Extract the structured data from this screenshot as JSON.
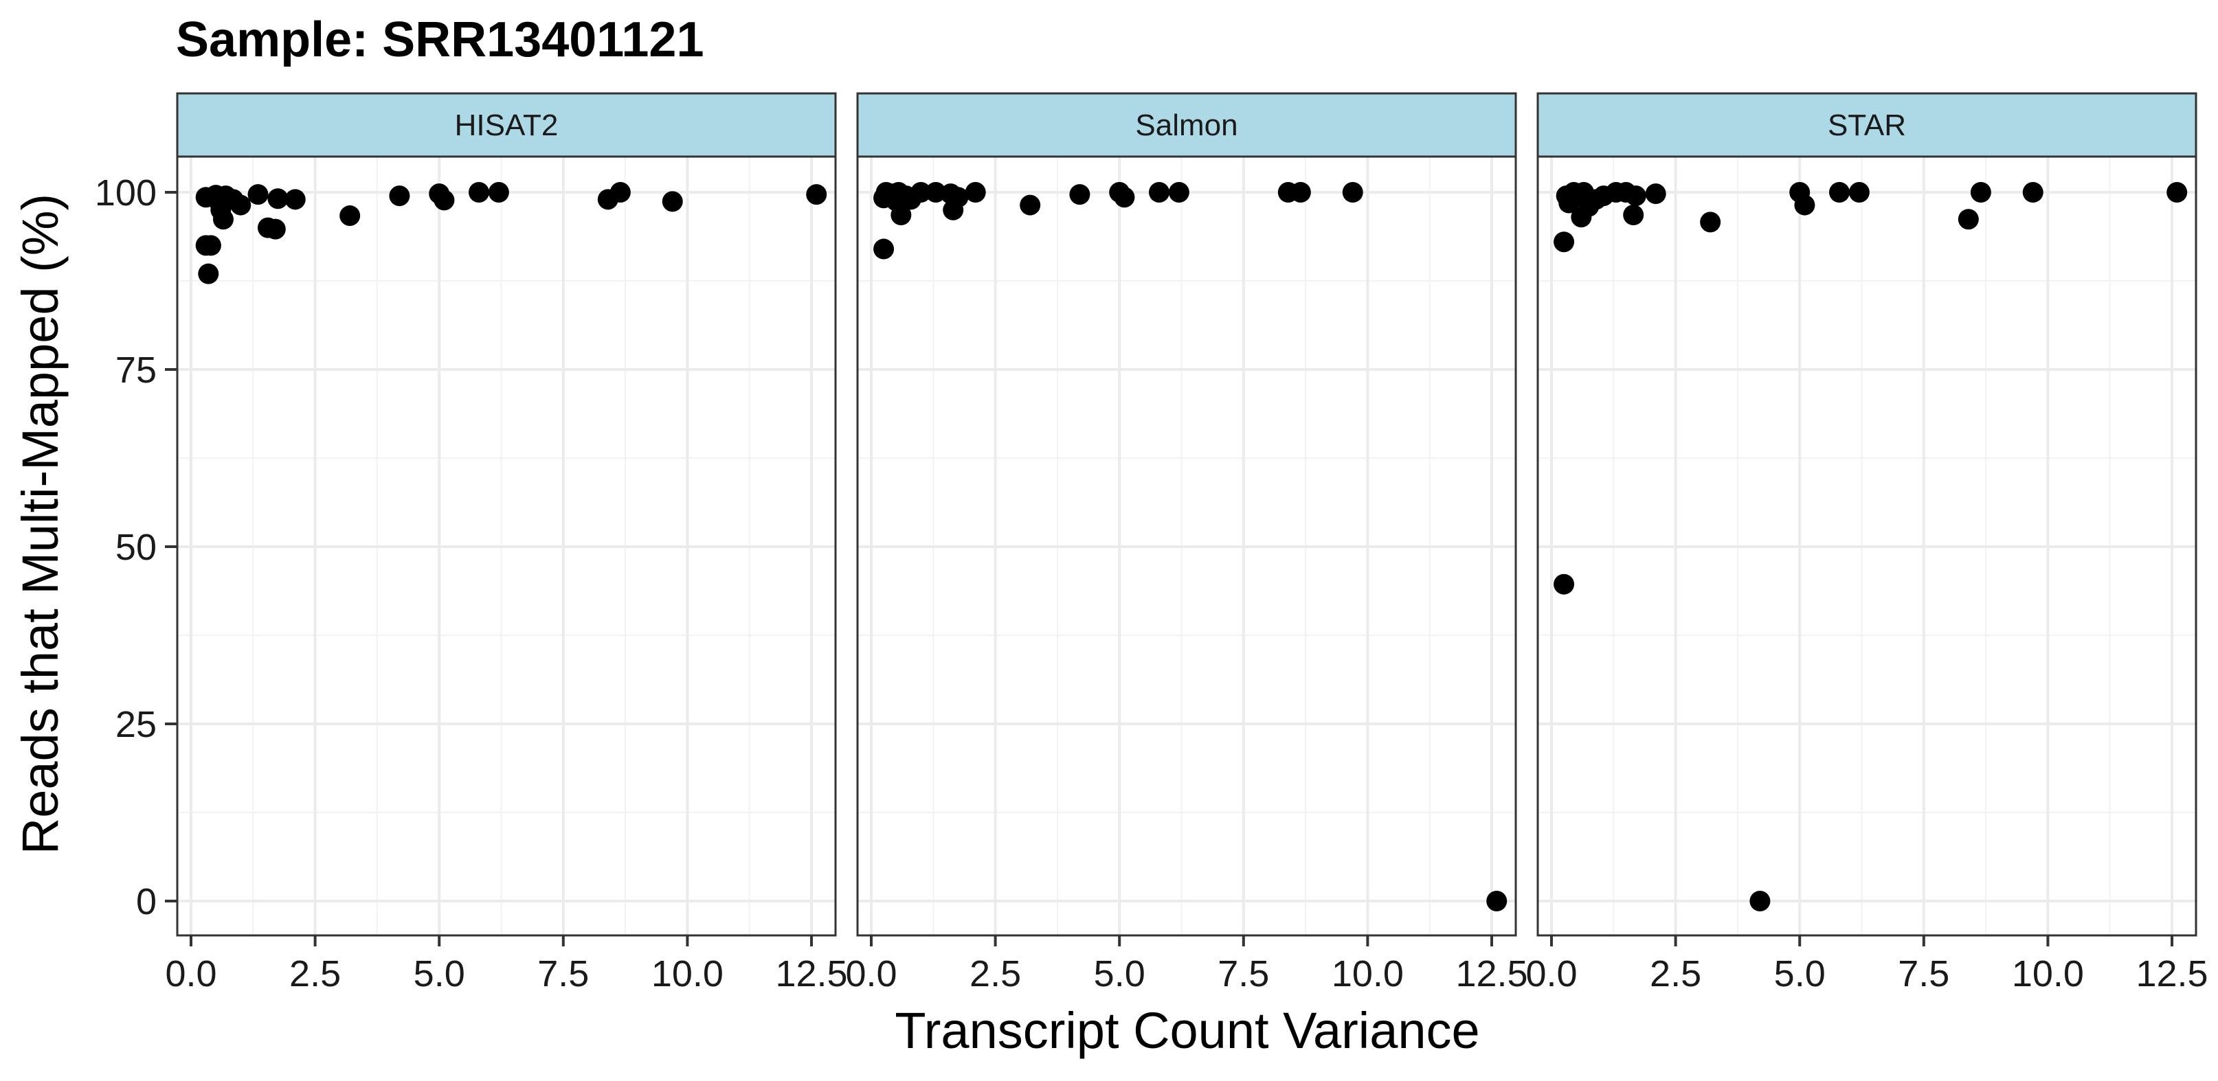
{
  "chart_data": {
    "type": "scatter",
    "title": "Sample: SRR13401121",
    "xlabel": "Transcript Count Variance",
    "ylabel": "Reads that Multi-Mapped (%)",
    "xlim": [
      0,
      12.5
    ],
    "ylim": [
      0,
      100
    ],
    "x_ticks": [
      "0.0",
      "2.5",
      "5.0",
      "7.5",
      "10.0",
      "12.5"
    ],
    "y_ticks": [
      "0",
      "25",
      "50",
      "75",
      "100"
    ],
    "grid": true,
    "point_color": "#000000",
    "strip_fill": "#ADD8E6",
    "panels": [
      {
        "name": "HISAT2",
        "points": [
          {
            "x": 0.3,
            "y": 99.3
          },
          {
            "x": 0.3,
            "y": 92.5
          },
          {
            "x": 0.4,
            "y": 92.5
          },
          {
            "x": 0.35,
            "y": 88.5
          },
          {
            "x": 0.5,
            "y": 99.6
          },
          {
            "x": 0.55,
            "y": 98.8
          },
          {
            "x": 0.6,
            "y": 97.5
          },
          {
            "x": 0.65,
            "y": 96.2
          },
          {
            "x": 0.7,
            "y": 99.5
          },
          {
            "x": 0.85,
            "y": 99.0
          },
          {
            "x": 1.0,
            "y": 98.2
          },
          {
            "x": 1.35,
            "y": 99.7
          },
          {
            "x": 1.55,
            "y": 95.0
          },
          {
            "x": 1.7,
            "y": 94.8
          },
          {
            "x": 1.75,
            "y": 99.1
          },
          {
            "x": 2.1,
            "y": 99.0
          },
          {
            "x": 3.2,
            "y": 96.7
          },
          {
            "x": 4.2,
            "y": 99.5
          },
          {
            "x": 5.0,
            "y": 99.8
          },
          {
            "x": 5.1,
            "y": 98.9
          },
          {
            "x": 5.8,
            "y": 100.0
          },
          {
            "x": 6.2,
            "y": 100.0
          },
          {
            "x": 8.4,
            "y": 99.0
          },
          {
            "x": 8.65,
            "y": 100.0
          },
          {
            "x": 9.7,
            "y": 98.7
          },
          {
            "x": 12.6,
            "y": 99.7
          }
        ]
      },
      {
        "name": "Salmon",
        "points": [
          {
            "x": 0.25,
            "y": 99.2
          },
          {
            "x": 0.3,
            "y": 100.0
          },
          {
            "x": 0.25,
            "y": 92.0
          },
          {
            "x": 0.4,
            "y": 99.8
          },
          {
            "x": 0.5,
            "y": 98.8
          },
          {
            "x": 0.55,
            "y": 100.0
          },
          {
            "x": 0.6,
            "y": 96.8
          },
          {
            "x": 0.7,
            "y": 99.5
          },
          {
            "x": 0.8,
            "y": 99.0
          },
          {
            "x": 1.0,
            "y": 100.0
          },
          {
            "x": 1.3,
            "y": 100.0
          },
          {
            "x": 1.6,
            "y": 99.8
          },
          {
            "x": 1.65,
            "y": 97.5
          },
          {
            "x": 1.75,
            "y": 99.3
          },
          {
            "x": 2.1,
            "y": 100.0
          },
          {
            "x": 3.2,
            "y": 98.2
          },
          {
            "x": 4.2,
            "y": 99.7
          },
          {
            "x": 5.0,
            "y": 100.0
          },
          {
            "x": 5.1,
            "y": 99.3
          },
          {
            "x": 5.8,
            "y": 100.0
          },
          {
            "x": 6.2,
            "y": 100.0
          },
          {
            "x": 8.4,
            "y": 100.0
          },
          {
            "x": 8.65,
            "y": 100.0
          },
          {
            "x": 9.7,
            "y": 100.0
          },
          {
            "x": 12.6,
            "y": 0.0
          }
        ]
      },
      {
        "name": "STAR",
        "points": [
          {
            "x": 0.25,
            "y": 93.0
          },
          {
            "x": 0.25,
            "y": 44.7
          },
          {
            "x": 0.3,
            "y": 99.5
          },
          {
            "x": 0.35,
            "y": 98.5
          },
          {
            "x": 0.45,
            "y": 100.0
          },
          {
            "x": 0.55,
            "y": 99.6
          },
          {
            "x": 0.6,
            "y": 96.5
          },
          {
            "x": 0.65,
            "y": 100.0
          },
          {
            "x": 0.75,
            "y": 98.0
          },
          {
            "x": 0.9,
            "y": 99.0
          },
          {
            "x": 1.05,
            "y": 99.5
          },
          {
            "x": 1.3,
            "y": 100.0
          },
          {
            "x": 1.5,
            "y": 100.0
          },
          {
            "x": 1.65,
            "y": 96.8
          },
          {
            "x": 1.7,
            "y": 99.5
          },
          {
            "x": 2.1,
            "y": 99.8
          },
          {
            "x": 3.2,
            "y": 95.8
          },
          {
            "x": 4.2,
            "y": 0.0
          },
          {
            "x": 5.0,
            "y": 100.0
          },
          {
            "x": 5.1,
            "y": 98.2
          },
          {
            "x": 5.8,
            "y": 100.0
          },
          {
            "x": 6.2,
            "y": 100.0
          },
          {
            "x": 8.4,
            "y": 96.2
          },
          {
            "x": 8.65,
            "y": 100.0
          },
          {
            "x": 9.7,
            "y": 100.0
          },
          {
            "x": 12.6,
            "y": 100.0
          }
        ]
      }
    ]
  }
}
